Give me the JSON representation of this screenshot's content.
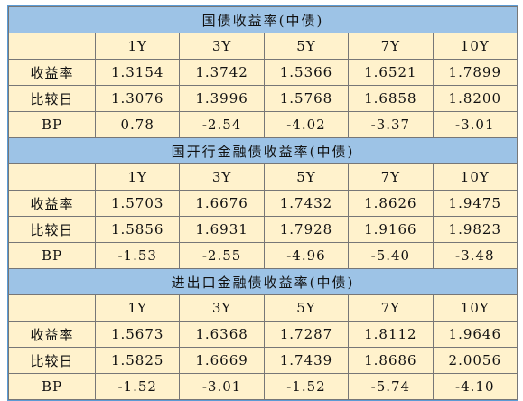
{
  "sections": [
    {
      "title": "国债收益率(中债)",
      "header": [
        "1Y",
        "3Y",
        "5Y",
        "7Y",
        "10Y"
      ],
      "rows": [
        {
          "label": "收益率",
          "values": [
            "1.3154",
            "1.3742",
            "1.5366",
            "1.6521",
            "1.7899"
          ]
        },
        {
          "label": "比较日",
          "values": [
            "1.3076",
            "1.3996",
            "1.5768",
            "1.6858",
            "1.8200"
          ]
        },
        {
          "label": "BP",
          "values": [
            "0.78",
            "-2.54",
            "-4.02",
            "-3.37",
            "-3.01"
          ]
        }
      ]
    },
    {
      "title": "国开行金融债收益率(中债)",
      "header": [
        "1Y",
        "3Y",
        "5Y",
        "7Y",
        "10Y"
      ],
      "rows": [
        {
          "label": "收益率",
          "values": [
            "1.5703",
            "1.6676",
            "1.7432",
            "1.8626",
            "1.9475"
          ]
        },
        {
          "label": "比较日",
          "values": [
            "1.5856",
            "1.6931",
            "1.7928",
            "1.9166",
            "1.9823"
          ]
        },
        {
          "label": "BP",
          "values": [
            "-1.53",
            "-2.55",
            "-4.96",
            "-5.40",
            "-3.48"
          ]
        }
      ]
    },
    {
      "title": "进出口金融债收益率(中债)",
      "header": [
        "1Y",
        "3Y",
        "5Y",
        "7Y",
        "10Y"
      ],
      "rows": [
        {
          "label": "收益率",
          "values": [
            "1.5673",
            "1.6368",
            "1.7287",
            "1.8112",
            "1.9646"
          ]
        },
        {
          "label": "比较日",
          "values": [
            "1.5825",
            "1.6669",
            "1.7439",
            "1.8686",
            "2.0056"
          ]
        },
        {
          "label": "BP",
          "values": [
            "-1.52",
            "-3.01",
            "-1.52",
            "-5.74",
            "-4.10"
          ]
        }
      ]
    }
  ]
}
